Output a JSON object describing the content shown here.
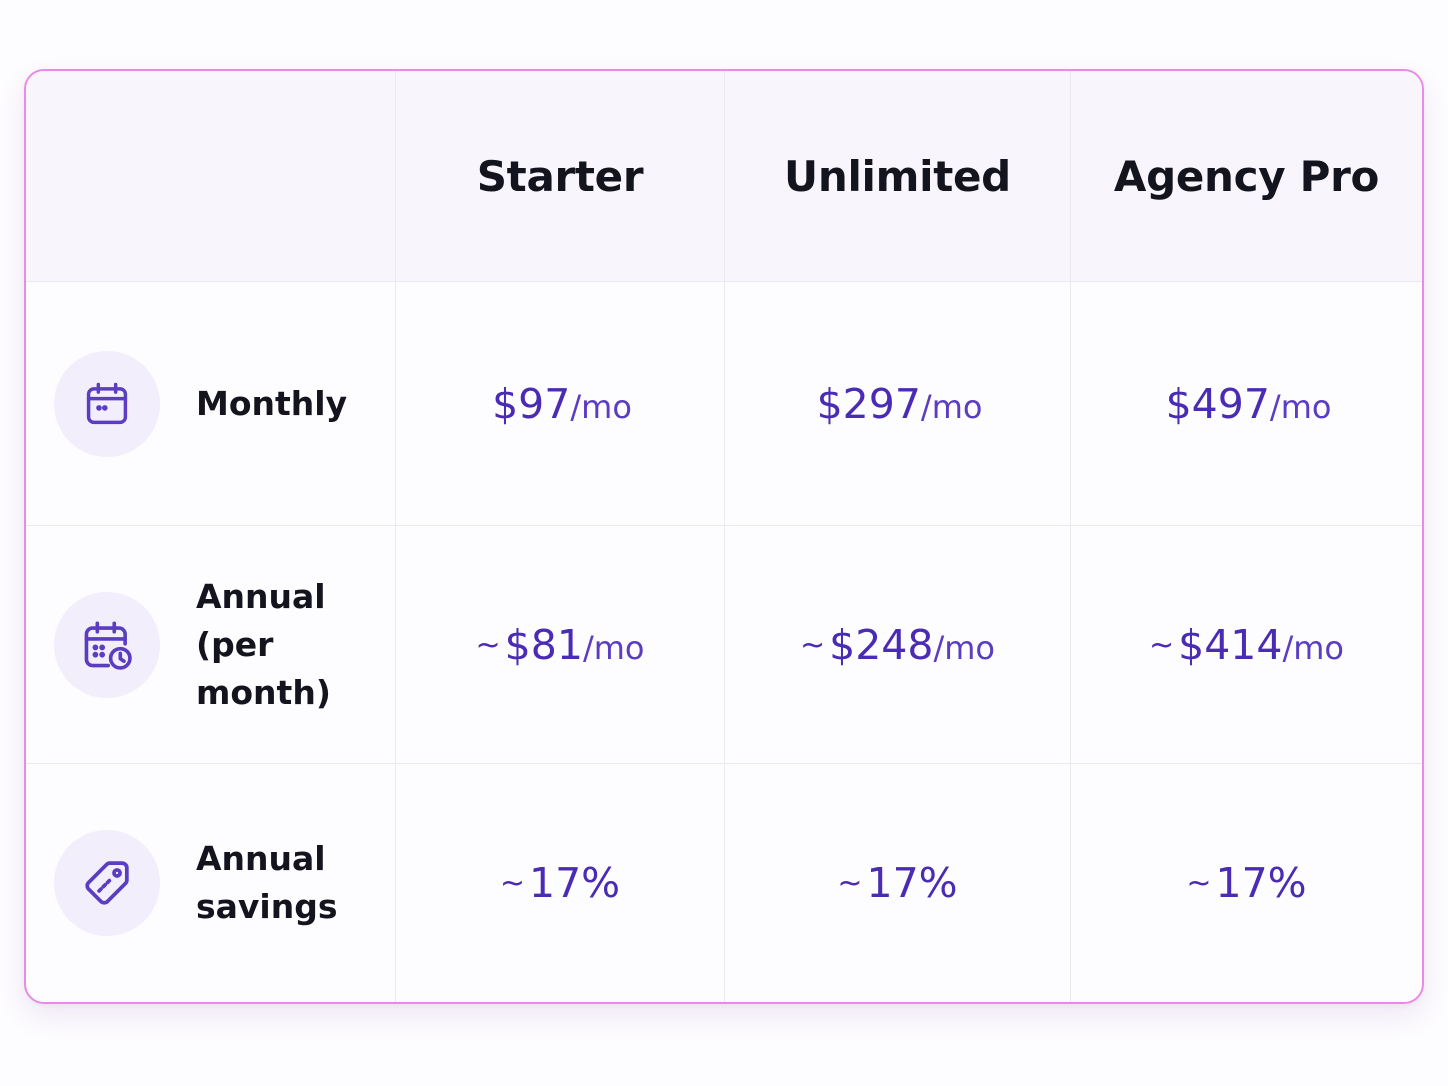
{
  "plans": [
    "Starter",
    "Unlimited",
    "Agency Pro"
  ],
  "rows": [
    {
      "icon": "calendar-icon",
      "label_lines": [
        "Monthly"
      ],
      "values": [
        {
          "prefix": "",
          "amount": "$97",
          "unit": "/mo"
        },
        {
          "prefix": "",
          "amount": "$297",
          "unit": "/mo"
        },
        {
          "prefix": "",
          "amount": "$497",
          "unit": "/mo"
        }
      ]
    },
    {
      "icon": "calendar-clock-icon",
      "label_lines": [
        "Annual",
        "(per month)"
      ],
      "values": [
        {
          "prefix": "~",
          "amount": "$81",
          "unit": "/mo"
        },
        {
          "prefix": "~",
          "amount": "$248",
          "unit": "/mo"
        },
        {
          "prefix": "~",
          "amount": "$414",
          "unit": "/mo"
        }
      ]
    },
    {
      "icon": "price-tag-icon",
      "label_lines": [
        "Annual",
        "savings"
      ],
      "values": [
        {
          "prefix": "~",
          "amount": "17%",
          "unit": ""
        },
        {
          "prefix": "~",
          "amount": "17%",
          "unit": ""
        },
        {
          "prefix": "~",
          "amount": "17%",
          "unit": ""
        }
      ]
    }
  ],
  "colors": {
    "accent": "#4a2bb3",
    "border": "#e98ae6",
    "icon_bg": "#f3eefb"
  }
}
